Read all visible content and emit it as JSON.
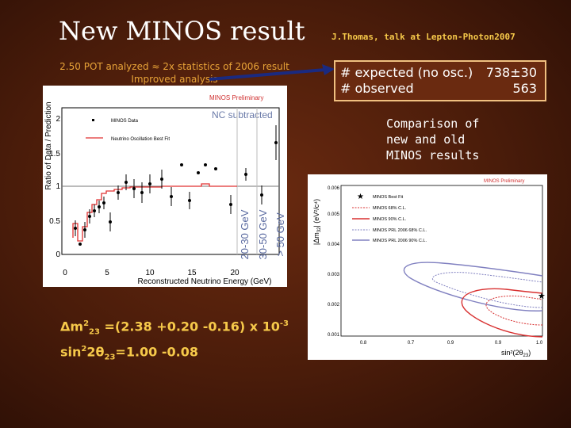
{
  "slide": {
    "title": "New MINOS result",
    "author": "J.Thomas,  talk at Lepton-Photon2007",
    "pot_line1": "2.50 POT analyzed ≈ 2x statistics of 2006 result",
    "pot_line2": "Improved analysis",
    "box": {
      "row1_label": "# expected  (no osc.)",
      "row1_value": "738±30",
      "row2_label": "# observed",
      "row2_value": "563"
    },
    "comparison_lines": [
      "Comparison of",
      "new and old",
      "MINOS results"
    ],
    "result": {
      "line1_prefix": "Δm",
      "line1_sup": "2",
      "line1_sub": "23",
      "line1_value": " =(2.38 +0.20 -0.16) x 10",
      "line1_exp": "-3",
      "line2_prefix": "sin",
      "line2_sup": "2",
      "line2_mid": "2θ",
      "line2_sub": "23",
      "line2_value": "=1.00 -0.08"
    }
  },
  "plot1": {
    "preliminary": "MINOS Preliminary",
    "nc_label": "NC subtracted",
    "legend_data": "MINOS Data",
    "legend_fit": "Neutrino Oscillation Best Fit",
    "ylabel": "Ratio of Data / Prediction",
    "xlabel": "Reconstructed Neutrino Energy (GeV)",
    "xticks": [
      "0",
      "5",
      "10",
      "15",
      "20"
    ],
    "yticks": [
      "0",
      "0.5",
      "1",
      "1.5",
      "2"
    ],
    "range_label1": "20-30 GeV",
    "range_label2": "30-50 GeV",
    "range_label3": "> 50 GeV",
    "colors": {
      "fit": "#e03030",
      "data": "#000000"
    }
  },
  "plot2": {
    "preliminary": "MINOS Preliminary",
    "legend": [
      "MINOS Best Fit",
      "MINOS 68% C.L.",
      "MINOS 90% C.L.",
      "MINOS PRL 2006 68% C.L.",
      "MINOS PRL 2006 90% C.L."
    ],
    "ylabel_main": "|Δm",
    "ylabel_sub": "32",
    "ylabel_rest": "| (eV²/c⁴)",
    "xlabel": "sin²(2θ",
    "xlabel_sub": "23",
    "xlabel_end": ")",
    "yticks": [
      "0.001",
      "0.002",
      "0.003",
      "0.004",
      "0.005",
      "0.006"
    ],
    "xticks": [
      "0.8",
      "0.7",
      "0.9",
      "0.9",
      "1.0"
    ],
    "colors": {
      "new": "#d83030",
      "old": "#8080c0"
    }
  }
}
